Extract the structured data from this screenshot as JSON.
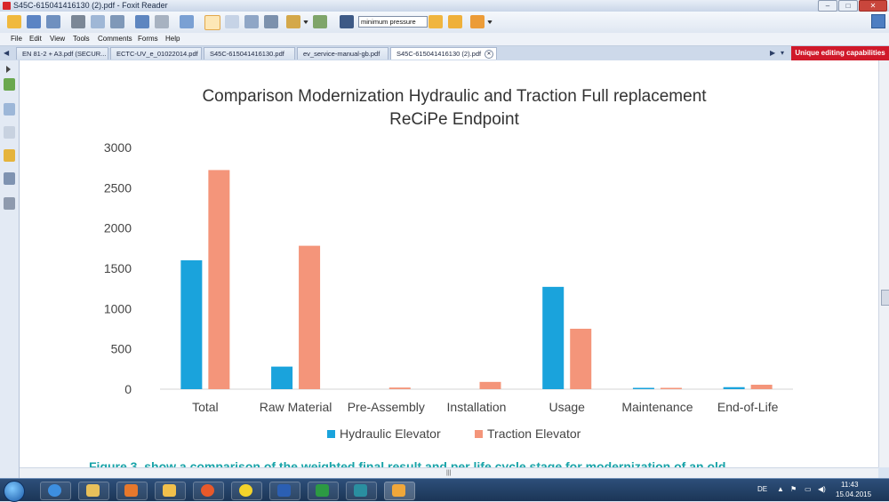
{
  "window": {
    "title": "S45C-615041416130 (2).pdf - Foxit Reader"
  },
  "toolbar": {
    "search_value": "minimum pressure"
  },
  "menu": [
    "File",
    "Edit",
    "View",
    "Tools",
    "Comments",
    "Forms",
    "Help"
  ],
  "tabs": [
    {
      "label": "EN 81-2 + A3.pdf (SECUR..."
    },
    {
      "label": "ECTC-UV_e_01022014.pdf"
    },
    {
      "label": "S45C-615041416130.pdf"
    },
    {
      "label": "ev_service-manual-gb.pdf"
    },
    {
      "label": "S45C-615041416130 (2).pdf"
    }
  ],
  "promo": "Unique editing capabilities",
  "figure_caption": "Figure 3. show a comparison of the weighted final result and per life cycle stage for modernization of an old",
  "chart_data": {
    "type": "bar",
    "title": "Comparison Modernization Hydraulic and Traction Full replacement",
    "subtitle": "ReCiPe Endpoint",
    "categories": [
      "Total",
      "Raw Material",
      "Pre-Assembly",
      "Installation",
      "Usage",
      "Maintenance",
      "End-of-Life"
    ],
    "series": [
      {
        "name": "Hydraulic Elevator",
        "color": "#1aa3dc",
        "values": [
          1600,
          280,
          0,
          0,
          1270,
          10,
          25
        ]
      },
      {
        "name": "Traction Elevator",
        "color": "#f4957a",
        "values": [
          2720,
          1780,
          20,
          90,
          750,
          10,
          55
        ]
      }
    ],
    "ylim": [
      0,
      3000
    ],
    "yticks": [
      "0",
      "500",
      "1000",
      "1500",
      "2000",
      "2500",
      "3000"
    ],
    "grid": false,
    "legend": "bottom"
  },
  "taskbar": {
    "language": "DE",
    "time": "11:43",
    "date": "15.04.2015"
  }
}
